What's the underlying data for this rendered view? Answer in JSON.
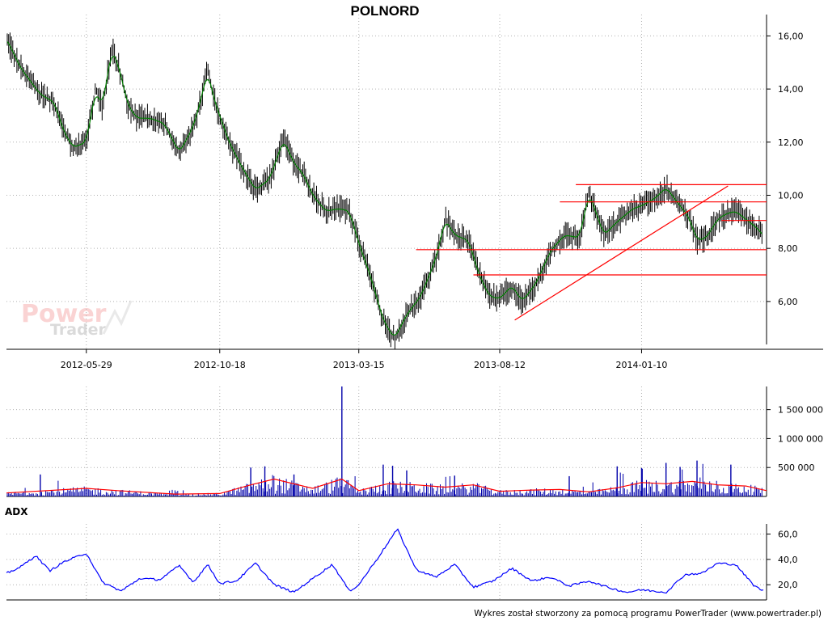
{
  "title": "POLNORD",
  "footer": "Wykres został stworzony za pomocą programu PowerTrader (www.powertrader.pl)",
  "watermark": {
    "line1": "Power",
    "line2": "Trader"
  },
  "colors": {
    "price": "#000000",
    "smooth": "#008000",
    "trendlines": "#ff0000",
    "volume": "#0000aa",
    "volume_avg": "#ff0000",
    "adx": "#0000ff",
    "grid": "#b0b0b0"
  },
  "chart_data": [
    {
      "type": "line",
      "name": "price",
      "title": "POLNORD",
      "x_ticks": [
        "2012-05-29",
        "2012-10-18",
        "2013-03-15",
        "2013-08-12",
        "2014-01-10"
      ],
      "y_ticks": [
        "16,00",
        "14,00",
        "12,00",
        "10,00",
        "8,00",
        "6,00"
      ],
      "ylim": [
        4.2,
        16.5
      ],
      "grid": true,
      "x_range": [
        "2012-03-05",
        "2014-05-23"
      ],
      "series": [
        {
          "type": "line",
          "x": [
            "2012-03-05",
            "2012-03-20",
            "2012-04-10",
            "2012-04-25",
            "2012-05-05",
            "2012-05-15",
            "2012-05-29",
            "2012-06-08",
            "2012-06-15",
            "2012-06-25",
            "2012-07-03",
            "2012-07-12",
            "2012-07-22",
            "2012-08-05",
            "2012-08-20",
            "2012-09-05",
            "2012-09-20",
            "2012-09-28",
            "2012-10-05",
            "2012-10-12",
            "2012-10-18",
            "2012-10-28",
            "2012-11-10",
            "2012-11-25",
            "2012-12-10",
            "2012-12-25",
            "2013-01-05",
            "2013-01-15",
            "2013-01-25",
            "2013-02-08",
            "2013-02-22",
            "2013-03-05",
            "2013-03-15",
            "2013-03-28",
            "2013-04-10",
            "2013-04-22",
            "2013-05-05",
            "2013-05-20",
            "2013-06-05",
            "2013-06-15",
            "2013-06-25",
            "2013-07-10",
            "2013-07-20",
            "2013-08-01",
            "2013-08-12",
            "2013-08-25",
            "2013-09-05",
            "2013-09-20",
            "2013-10-05",
            "2013-10-20",
            "2013-11-05",
            "2013-11-15",
            "2013-12-01",
            "2013-12-15",
            "2014-01-01",
            "2014-01-10",
            "2014-01-25",
            "2014-02-05",
            "2014-02-20",
            "2014-03-01",
            "2014-03-10",
            "2014-03-20",
            "2014-04-01",
            "2014-04-10",
            "2014-04-20",
            "2014-05-01",
            "2014-05-15",
            "2014-05-23"
          ],
          "y": [
            15.9,
            14.8,
            13.8,
            13.5,
            12.4,
            11.8,
            12.0,
            14.0,
            13.3,
            15.5,
            14.8,
            13.4,
            12.9,
            12.9,
            12.7,
            11.6,
            12.6,
            13.6,
            14.7,
            13.6,
            13.0,
            12.0,
            11.1,
            10.2,
            10.6,
            12.1,
            11.2,
            10.8,
            10.0,
            9.4,
            9.5,
            9.4,
            8.2,
            6.9,
            5.3,
            4.6,
            5.5,
            6.2,
            7.6,
            9.1,
            8.5,
            8.3,
            7.1,
            6.2,
            6.1,
            6.6,
            6.0,
            6.7,
            7.9,
            8.5,
            8.4,
            10.1,
            8.5,
            9.0,
            9.5,
            9.6,
            9.9,
            10.3,
            9.6,
            9.2,
            8.3,
            8.4,
            9.1,
            9.3,
            9.4,
            9.1,
            8.7,
            8.3
          ]
        },
        {
          "type": "line",
          "name": "resistance-top",
          "x": [
            "2013-11-01",
            "2014-05-23"
          ],
          "y": [
            10.4,
            10.4
          ]
        },
        {
          "type": "line",
          "name": "resistance-mid",
          "x": [
            "2013-10-15",
            "2014-05-23"
          ],
          "y": [
            9.75,
            9.75
          ]
        },
        {
          "type": "line",
          "name": "resistance-short",
          "x": [
            "2014-04-05",
            "2014-05-23"
          ],
          "y": [
            9.05,
            9.05
          ]
        },
        {
          "type": "line",
          "name": "support-upper",
          "x": [
            "2013-05-15",
            "2014-05-23"
          ],
          "y": [
            7.95,
            7.95
          ]
        },
        {
          "type": "line",
          "name": "support-lower",
          "x": [
            "2013-07-15",
            "2014-05-23"
          ],
          "y": [
            7.0,
            7.0
          ]
        },
        {
          "type": "line",
          "name": "trendline",
          "x": [
            "2013-08-28",
            "2014-04-12"
          ],
          "y": [
            5.3,
            10.35
          ]
        }
      ]
    },
    {
      "type": "bar",
      "name": "volume",
      "y_ticks": [
        "1 500 000",
        "1 000 000",
        "500 000"
      ],
      "ylim": [
        0,
        1900000
      ],
      "grid": true,
      "spikes": [
        {
          "x": "2012-04-10",
          "value": 380000
        },
        {
          "x": "2012-11-20",
          "value": 500000
        },
        {
          "x": "2012-12-05",
          "value": 520000
        },
        {
          "x": "2013-01-05",
          "value": 380000
        },
        {
          "x": "2013-02-25",
          "value": 1900000
        },
        {
          "x": "2013-04-10",
          "value": 550000
        },
        {
          "x": "2013-04-20",
          "value": 530000
        },
        {
          "x": "2013-05-05",
          "value": 450000
        },
        {
          "x": "2013-06-25",
          "value": 360000
        },
        {
          "x": "2013-10-25",
          "value": 350000
        },
        {
          "x": "2013-12-15",
          "value": 520000
        },
        {
          "x": "2014-01-10",
          "value": 490000
        },
        {
          "x": "2014-02-05",
          "value": 580000
        },
        {
          "x": "2014-02-20",
          "value": 510000
        },
        {
          "x": "2014-03-10",
          "value": 620000
        },
        {
          "x": "2014-04-15",
          "value": 550000
        }
      ],
      "average": {
        "x": [
          "2012-03-05",
          "2012-05-29",
          "2012-07-01",
          "2012-09-01",
          "2012-10-18",
          "2012-11-20",
          "2012-12-15",
          "2013-01-25",
          "2013-02-25",
          "2013-03-15",
          "2013-04-15",
          "2013-05-15",
          "2013-06-15",
          "2013-07-15",
          "2013-08-12",
          "2013-09-15",
          "2013-10-15",
          "2013-11-15",
          "2013-12-15",
          "2014-01-10",
          "2014-02-05",
          "2014-03-05",
          "2014-04-01",
          "2014-05-01",
          "2014-05-23"
        ],
        "y": [
          60000,
          140000,
          100000,
          40000,
          50000,
          200000,
          300000,
          140000,
          300000,
          100000,
          220000,
          200000,
          160000,
          200000,
          90000,
          110000,
          120000,
          80000,
          150000,
          240000,
          220000,
          260000,
          200000,
          180000,
          100000
        ]
      }
    },
    {
      "type": "line",
      "name": "ADX",
      "label": "ADX",
      "y_ticks": [
        "60,0",
        "40,0",
        "20,0"
      ],
      "ylim": [
        8,
        68
      ],
      "grid": true,
      "x": [
        "2012-03-05",
        "2012-03-20",
        "2012-04-05",
        "2012-04-20",
        "2012-05-05",
        "2012-05-29",
        "2012-06-15",
        "2012-07-05",
        "2012-07-25",
        "2012-08-15",
        "2012-09-05",
        "2012-09-20",
        "2012-10-05",
        "2012-10-18",
        "2012-11-05",
        "2012-11-25",
        "2012-12-15",
        "2013-01-05",
        "2013-01-25",
        "2013-02-15",
        "2013-03-05",
        "2013-03-15",
        "2013-04-05",
        "2013-04-25",
        "2013-05-15",
        "2013-06-05",
        "2013-06-25",
        "2013-07-15",
        "2013-08-05",
        "2013-08-25",
        "2013-09-15",
        "2013-10-05",
        "2013-10-25",
        "2013-11-15",
        "2013-12-05",
        "2013-12-25",
        "2014-01-10",
        "2014-02-05",
        "2014-02-25",
        "2014-03-15",
        "2014-04-01",
        "2014-04-20",
        "2014-05-10",
        "2014-05-23"
      ],
      "y": [
        29,
        34,
        43,
        31,
        38,
        45,
        22,
        15,
        25,
        24,
        35,
        22,
        36,
        21,
        23,
        37,
        20,
        14,
        25,
        36,
        15,
        20,
        42,
        64,
        32,
        26,
        36,
        18,
        23,
        33,
        23,
        26,
        19,
        23,
        18,
        14,
        16,
        14,
        28,
        29,
        37,
        36,
        19,
        14
      ]
    }
  ]
}
